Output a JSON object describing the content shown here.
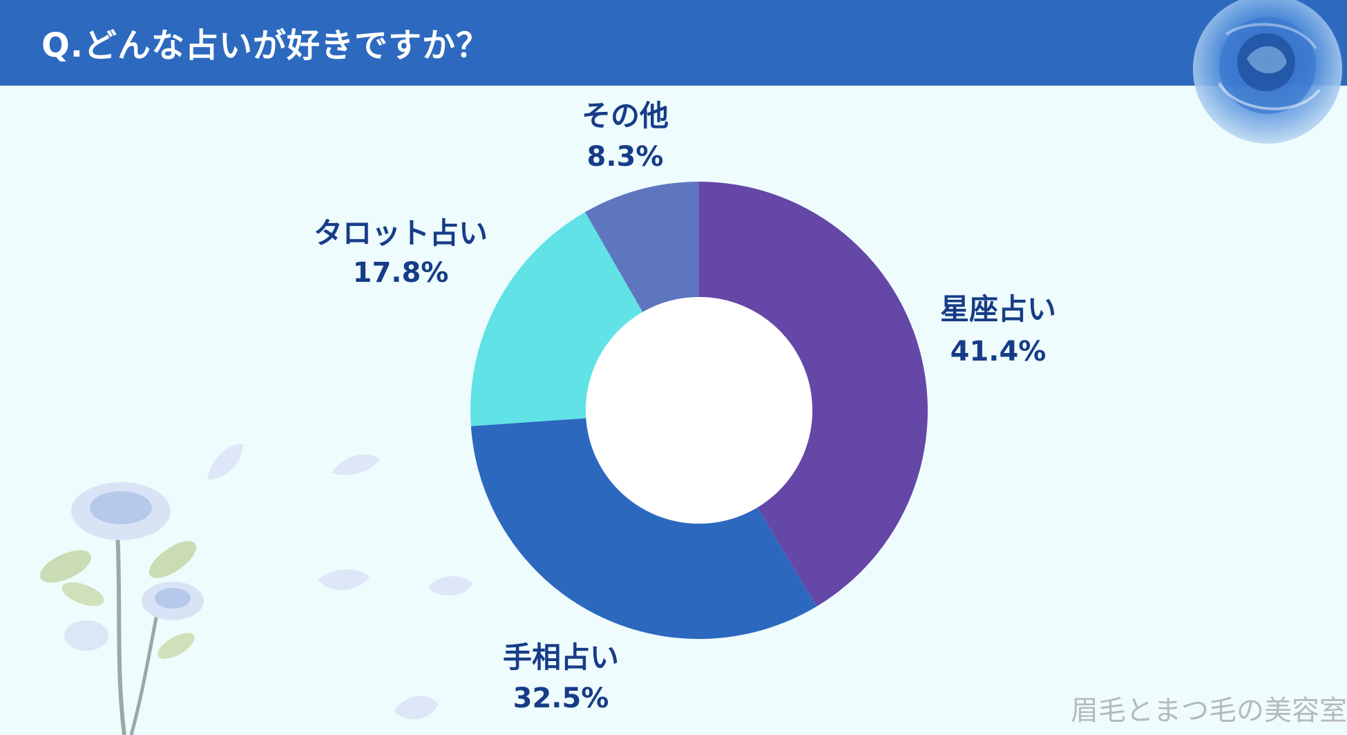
{
  "header": {
    "title": "Q.どんな占いが好きですか？"
  },
  "watermark": "眉毛とまつ毛の美容室",
  "chart_data": {
    "type": "pie",
    "title": "Q.どんな占いが好きですか？",
    "donut": true,
    "start": "top, clockwise",
    "slices": [
      {
        "name": "星座占い",
        "value": 41.4,
        "label": "41.4%",
        "color": "#6447a6"
      },
      {
        "name": "手相占い",
        "value": 32.5,
        "label": "32.5%",
        "color": "#2d68bf"
      },
      {
        "name": "タロット占い",
        "value": 17.8,
        "label": "17.8%",
        "color": "#61e2e6"
      },
      {
        "name": "その他",
        "value": 8.3,
        "label": "8.3%",
        "color": "#5e75c0"
      }
    ]
  },
  "decorations": {
    "rose_icon": "blue-rose-icon",
    "flower_icon": "white-rose-stem-icon",
    "petal_icon": "petal-icon"
  }
}
